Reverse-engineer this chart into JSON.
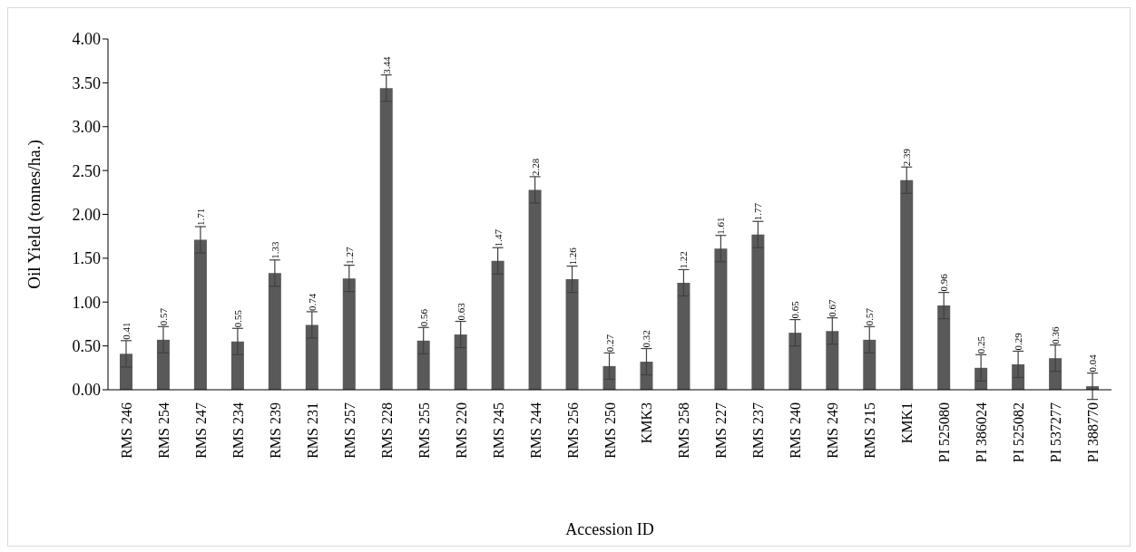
{
  "chart_data": {
    "type": "bar",
    "xlabel": "Accession ID",
    "ylabel": "Oil Yield (tonnes/ha.)",
    "categories": [
      "RMS 246",
      "RMS 254",
      "RMS 247",
      "RMS 234",
      "RMS 239",
      "RMS 231",
      "RMS 257",
      "RMS 228",
      "RMS 255",
      "RMS 220",
      "RMS 245",
      "RMS 244",
      "RMS 256",
      "RMS 250",
      "KMK3",
      "RMS 258",
      "RMS 227",
      "RMS 237",
      "RMS 240",
      "RMS 249",
      "RMS 215",
      "KMK1",
      "PI 525080",
      "PI 386024",
      "PI 525082",
      "PI 537277",
      "PI 388770"
    ],
    "values": [
      0.41,
      0.57,
      1.71,
      0.55,
      1.33,
      0.74,
      1.27,
      3.44,
      0.56,
      0.63,
      1.47,
      2.28,
      1.26,
      0.27,
      0.32,
      1.22,
      1.61,
      1.77,
      0.65,
      0.67,
      0.57,
      2.39,
      0.96,
      0.25,
      0.29,
      0.36,
      0.04
    ],
    "errors": [
      0.15,
      0.15,
      0.15,
      0.15,
      0.15,
      0.15,
      0.15,
      0.15,
      0.15,
      0.15,
      0.15,
      0.15,
      0.15,
      0.15,
      0.15,
      0.15,
      0.15,
      0.15,
      0.15,
      0.15,
      0.15,
      0.15,
      0.15,
      0.15,
      0.15,
      0.15,
      0.15
    ],
    "color": "#595959",
    "data_labels": true,
    "ylim": [
      0,
      4
    ],
    "yticks": [
      {
        "value": 0,
        "label": "0.00"
      },
      {
        "value": 0.5,
        "label": "0.50"
      },
      {
        "value": 1,
        "label": "1.00"
      },
      {
        "value": 1.5,
        "label": "1.50"
      },
      {
        "value": 2,
        "label": "2.00"
      },
      {
        "value": 2.5,
        "label": "2.50"
      },
      {
        "value": 3,
        "label": "3.00"
      },
      {
        "value": 3.5,
        "label": "3.50"
      },
      {
        "value": 4,
        "label": "4.00"
      }
    ],
    "grid": false,
    "legend": false
  }
}
